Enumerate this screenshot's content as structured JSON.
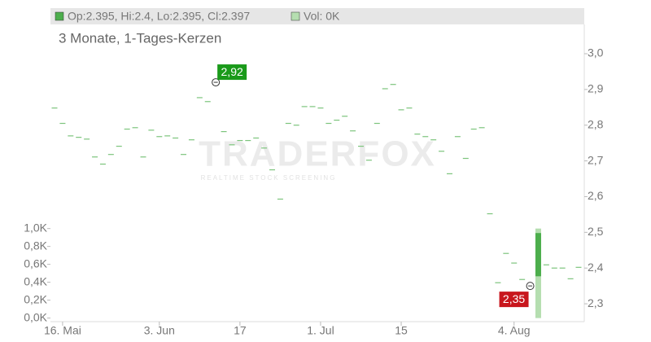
{
  "chart_data": {
    "type": "candlestick",
    "subtitle": "3 Monate, 1-Tages-Kerzen",
    "info": "Op:2.395, Hi:2.4, Lo:2.395, Cl:2.397",
    "volume_info": "Vol: 0K",
    "watermark": "TRADERFOX",
    "watermark_sub": "REALTIME STOCK SCREENING",
    "categories": [
      null,
      "16. Mai",
      null,
      null,
      null,
      null,
      null,
      null,
      null,
      null,
      null,
      null,
      null,
      "3. Jun",
      null,
      null,
      null,
      null,
      null,
      null,
      null,
      null,
      null,
      "17",
      null,
      null,
      null,
      null,
      null,
      null,
      null,
      null,
      null,
      "1. Jul",
      null,
      null,
      null,
      null,
      null,
      null,
      null,
      null,
      null,
      "15",
      null,
      null,
      null,
      null,
      null,
      null,
      null,
      null,
      null,
      null,
      null,
      null,
      null,
      "4. Aug",
      null,
      null,
      null,
      null,
      null,
      null,
      null,
      null
    ],
    "open": [
      2.848,
      2.805,
      2.77,
      2.766,
      2.761,
      2.711,
      2.691,
      2.718,
      2.741,
      2.789,
      2.793,
      2.711,
      2.786,
      2.768,
      2.77,
      2.764,
      2.718,
      2.759,
      2.877,
      2.866,
      2.92,
      2.782,
      2.745,
      2.757,
      2.757,
      2.764,
      2.736,
      2.675,
      2.593,
      2.805,
      2.8,
      2.852,
      2.852,
      2.848,
      2.805,
      2.814,
      2.825,
      2.784,
      2.741,
      2.702,
      2.805,
      2.902,
      2.914,
      2.843,
      2.848,
      2.775,
      2.768,
      2.759,
      2.727,
      2.664,
      2.768,
      2.707,
      2.789,
      2.793,
      2.552,
      2.359,
      2.441,
      2.414,
      2.368,
      2.35,
      2.377,
      2.409,
      2.4,
      2.4,
      2.37,
      2.402
    ],
    "close": [
      2.848,
      2.805,
      2.77,
      2.766,
      2.761,
      2.711,
      2.691,
      2.718,
      2.741,
      2.789,
      2.793,
      2.711,
      2.786,
      2.768,
      2.77,
      2.764,
      2.718,
      2.759,
      2.877,
      2.866,
      2.92,
      2.782,
      2.745,
      2.757,
      2.757,
      2.764,
      2.736,
      2.675,
      2.593,
      2.805,
      2.8,
      2.852,
      2.852,
      2.848,
      2.805,
      2.814,
      2.825,
      2.784,
      2.741,
      2.702,
      2.805,
      2.902,
      2.914,
      2.843,
      2.848,
      2.775,
      2.768,
      2.759,
      2.727,
      2.664,
      2.768,
      2.707,
      2.789,
      2.793,
      2.552,
      2.359,
      2.441,
      2.414,
      2.368,
      2.35,
      2.498,
      2.409,
      2.4,
      2.4,
      2.37,
      2.402
    ],
    "volume": [
      0,
      0,
      0,
      0,
      0,
      0,
      0,
      0,
      0,
      0,
      0,
      0,
      0,
      0,
      0,
      0,
      0,
      0,
      0,
      0,
      0,
      0,
      0,
      0,
      0,
      0,
      0,
      0,
      0,
      0,
      0,
      0,
      0,
      0,
      0,
      0,
      0,
      0,
      0,
      0,
      0,
      0,
      0,
      0,
      0,
      0,
      0,
      0,
      0,
      0,
      0,
      0,
      0,
      0,
      0,
      0,
      0,
      0,
      0,
      0,
      1.0,
      0,
      0,
      0,
      0,
      0
    ],
    "high_label": {
      "value": 2.92,
      "label": "2,92"
    },
    "low_label": {
      "value": 2.35,
      "label": "2,35"
    },
    "ylim": [
      2.25,
      3.082
    ],
    "yticks": [
      {
        "value": 2.3,
        "label": "2,3"
      },
      {
        "value": 2.4,
        "label": "2,4"
      },
      {
        "value": 2.5,
        "label": "2,5"
      },
      {
        "value": 2.6,
        "label": "2,6"
      },
      {
        "value": 2.7,
        "label": "2,7"
      },
      {
        "value": 2.8,
        "label": "2,8"
      },
      {
        "value": 2.9,
        "label": "2,9"
      },
      {
        "value": 3.0,
        "label": "3,0"
      }
    ],
    "y2lim": [
      -0.04,
      3.28
    ],
    "y2ticks": [
      {
        "value": 0,
        "label": "0,0K"
      },
      {
        "value": 0.2,
        "label": "0,2K"
      },
      {
        "value": 0.4,
        "label": "0,4K"
      },
      {
        "value": 0.6,
        "label": "0,6K"
      },
      {
        "value": 0.8,
        "label": "0,8K"
      },
      {
        "value": 1.0,
        "label": "1,0K"
      }
    ],
    "up_color": "#4cae4c",
    "flat_color": "#7cc47c",
    "volume_color": "#b5deb0",
    "high_color": "#1a9a1a",
    "low_color": "#c8161d"
  }
}
